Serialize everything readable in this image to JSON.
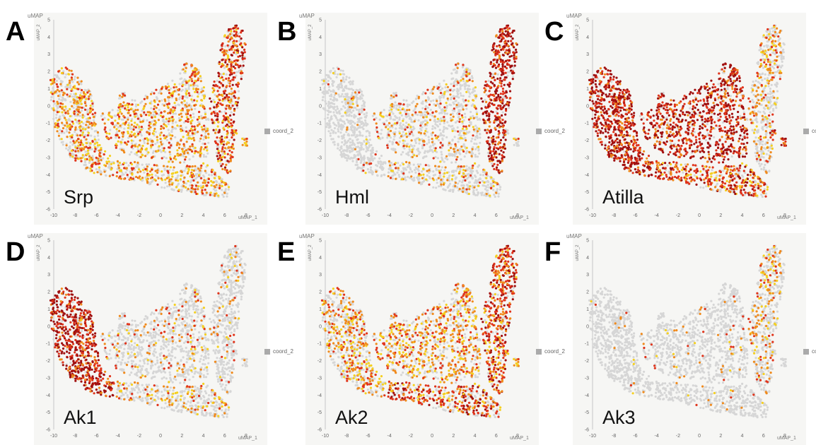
{
  "chart_data": [
    {
      "type": "scatter",
      "panel": "A",
      "gene": "Srp",
      "axis_title": "uMAP",
      "y_axis_label": "uMAP_2",
      "x_axis_label": "uMAP_1",
      "legend": "coord_2",
      "xlim": [
        -10,
        8
      ],
      "ylim": [
        -6,
        5
      ],
      "x_ticks": [
        -10,
        -8,
        -6,
        -4,
        -2,
        0,
        2,
        4,
        6,
        8
      ],
      "y_ticks": [
        -6,
        -5,
        -4,
        -3,
        -2,
        -1,
        0,
        1,
        2,
        3,
        4,
        5
      ],
      "expression": {
        "left": 0.5,
        "center": 0.6,
        "bottom": 0.55,
        "top_right": 0.75
      }
    },
    {
      "type": "scatter",
      "panel": "B",
      "gene": "Hml",
      "axis_title": "uMAP",
      "y_axis_label": "uMAP_2",
      "x_axis_label": "uMAP_1",
      "legend": "coord_2",
      "xlim": [
        -10,
        8
      ],
      "ylim": [
        -6,
        5
      ],
      "x_ticks": [
        -10,
        -8,
        -6,
        -4,
        -2,
        0,
        2,
        4,
        6,
        8
      ],
      "y_ticks": [
        -6,
        -5,
        -4,
        -3,
        -2,
        -1,
        0,
        1,
        2,
        3,
        4,
        5
      ],
      "expression": {
        "left": 0.05,
        "center": 0.25,
        "bottom": 0.25,
        "top_right": 0.88
      }
    },
    {
      "type": "scatter",
      "panel": "C",
      "gene": "Atilla",
      "axis_title": "uMAP",
      "y_axis_label": "uMAP_2",
      "x_axis_label": "uMAP_1",
      "legend": "coord_2",
      "xlim": [
        -10,
        8
      ],
      "ylim": [
        -6,
        5
      ],
      "x_ticks": [
        -10,
        -8,
        -6,
        -4,
        -2,
        0,
        2,
        4,
        6,
        8
      ],
      "y_ticks": [
        -6,
        -5,
        -4,
        -3,
        -2,
        -1,
        0,
        1,
        2,
        3,
        4,
        5
      ],
      "expression": {
        "left": 0.97,
        "center": 0.88,
        "bottom": 0.82,
        "top_right": 0.35
      }
    },
    {
      "type": "scatter",
      "panel": "D",
      "gene": "Ak1",
      "axis_title": "uMAP",
      "y_axis_label": "uMAP_2",
      "x_axis_label": "uMAP_1",
      "legend": "coord_2",
      "xlim": [
        -10,
        8
      ],
      "ylim": [
        -6,
        5
      ],
      "x_ticks": [
        -10,
        -8,
        -6,
        -4,
        -2,
        0,
        2,
        4,
        6,
        8
      ],
      "y_ticks": [
        -6,
        -5,
        -4,
        -3,
        -2,
        -1,
        0,
        1,
        2,
        3,
        4,
        5
      ],
      "expression": {
        "left": 0.9,
        "center": 0.15,
        "bottom": 0.3,
        "top_right": 0.1
      }
    },
    {
      "type": "scatter",
      "panel": "E",
      "gene": "Ak2",
      "axis_title": "uMAP",
      "y_axis_label": "uMAP_2",
      "x_axis_label": "uMAP_1",
      "legend": "coord_2",
      "xlim": [
        -10,
        8
      ],
      "ylim": [
        -6,
        5
      ],
      "x_ticks": [
        -10,
        -8,
        -6,
        -4,
        -2,
        0,
        2,
        4,
        6,
        8
      ],
      "y_ticks": [
        -6,
        -5,
        -4,
        -3,
        -2,
        -1,
        0,
        1,
        2,
        3,
        4,
        5
      ],
      "expression": {
        "left": 0.45,
        "center": 0.6,
        "bottom": 0.7,
        "top_right": 0.8
      }
    },
    {
      "type": "scatter",
      "panel": "F",
      "gene": "Ak3",
      "axis_title": "uMAP",
      "y_axis_label": "uMAP_2",
      "x_axis_label": "uMAP_1",
      "legend": "coord_2",
      "xlim": [
        -10,
        8
      ],
      "ylim": [
        -6,
        5
      ],
      "x_ticks": [
        -10,
        -8,
        -6,
        -4,
        -2,
        0,
        2,
        4,
        6,
        8
      ],
      "y_ticks": [
        -6,
        -5,
        -4,
        -3,
        -2,
        -1,
        0,
        1,
        2,
        3,
        4,
        5
      ],
      "expression": {
        "left": 0.02,
        "center": 0.05,
        "bottom": 0.05,
        "top_right": 0.3
      }
    }
  ],
  "colors": {
    "none": "#d6d6d6",
    "low": "#f5d020",
    "mid": "#f08a1c",
    "high": "#e0341b",
    "max": "#a01010",
    "plot_bg": "#f6f6f4",
    "legend_swatch": "#aaaaaa"
  }
}
